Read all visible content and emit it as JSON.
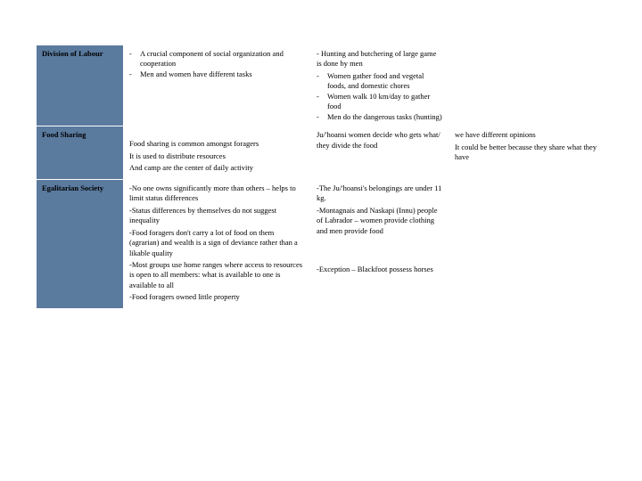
{
  "rows": [
    {
      "header": "Division of Labour",
      "col2": [
        {
          "type": "bullet",
          "text": "A crucial component of social organization and cooperation"
        },
        {
          "type": "bullet",
          "text": "Men and women have different tasks"
        }
      ],
      "col3": [
        {
          "type": "plain",
          "text": " - Hunting and butchering of large game is done by men"
        },
        {
          "type": "bullet",
          "text": "Women gather food and vegetal foods, and domestic chores"
        },
        {
          "type": "bullet",
          "text": "Women walk 10 km/day to gather food"
        },
        {
          "type": "bullet",
          "text": "Men do the dangerous tasks (hunting)"
        }
      ],
      "col4": []
    },
    {
      "header": "Food Sharing",
      "col2": [
        {
          "type": "spacer"
        },
        {
          "type": "plain",
          "text": "Food sharing is common amongst foragers"
        },
        {
          "type": "plain",
          "text": "It is used to distribute resources"
        },
        {
          "type": "plain",
          "text": "And camp are the center of daily activity"
        }
      ],
      "col3": [
        {
          "type": "plain",
          "text": "Ju/'hoansi women decide who gets what/ they divide the food"
        }
      ],
      "col4": [
        {
          "type": "plain",
          "text": "we have different opinions"
        },
        {
          "type": "plain",
          "text": "It could be better because they share what they have"
        }
      ]
    },
    {
      "header": "Egalitarian Society",
      "col2": [
        {
          "type": "plain",
          "text": "-No one owns significantly more than others – helps to limit status differences"
        },
        {
          "type": "plain",
          "text": "-Status differences by themselves do not suggest inequality"
        },
        {
          "type": "plain",
          "text": "-Food foragers don't carry a lot of food on them (agrarian) and wealth is a sign of deviance rather than a likable quality"
        },
        {
          "type": "plain",
          "text": "-Most groups use home ranges where access to resources is open to all members: what is available to one is available to all"
        },
        {
          "type": "plain",
          "text": "-Food foragers owned little property"
        }
      ],
      "col3": [
        {
          "type": "plain",
          "text": "-The Ju/'hoansi's belongings are under 11 kg."
        },
        {
          "type": "plain",
          "text": "-Montagnais and Naskapi (Innu) people of Labrador – women provide clothing and men provide food"
        },
        {
          "type": "spacer"
        },
        {
          "type": "spacer"
        },
        {
          "type": "spacer"
        },
        {
          "type": "plain",
          "text": "-Exception – Blackfoot possess horses"
        }
      ],
      "col4": []
    }
  ],
  "colors": {
    "header_bg": "#5a7a9e",
    "border": "#ffffff",
    "text": "#000000"
  }
}
